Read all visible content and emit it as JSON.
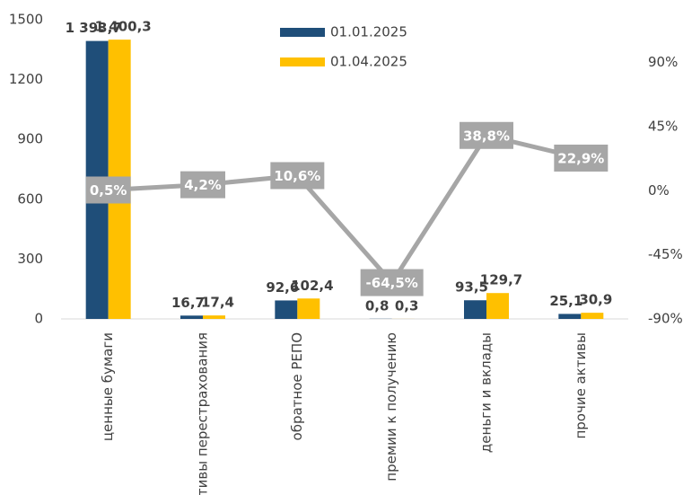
{
  "chart_data": {
    "type": "bar",
    "categories": [
      "ценные бумаги",
      "активы перестрахования",
      "обратное РЕПО",
      "премии к получению",
      "деньги и вклады",
      "прочие активы"
    ],
    "series": [
      {
        "name": "01.01.2025",
        "color": "#1f4e79",
        "values": [
          1393.7,
          16.7,
          92.6,
          0.8,
          93.5,
          25.1
        ],
        "value_labels": [
          "1 393,7",
          "16,7",
          "92,6",
          "0,8",
          "93,5",
          "25,1"
        ]
      },
      {
        "name": "01.04.2025",
        "color": "#ffc000",
        "values": [
          1400.3,
          17.4,
          102.4,
          0.3,
          129.7,
          30.9
        ],
        "value_labels": [
          "1 400,3",
          "17,4",
          "102,4",
          "0,3",
          "129,7",
          "30,9"
        ]
      },
      {
        "type": "line",
        "axis": "y2",
        "color": "#a6a6a6",
        "values": [
          0.5,
          4.2,
          10.6,
          -64.5,
          38.8,
          22.9
        ],
        "value_labels": [
          "0,5%",
          "4,2%",
          "10,6%",
          "-64,5%",
          "38,8%",
          "22,9%"
        ]
      }
    ],
    "ylim": [
      0,
      1500
    ],
    "yticks": [
      0,
      300,
      600,
      900,
      1200,
      1500
    ],
    "y2lim": [
      -90,
      120
    ],
    "y2ticks": [
      {
        "value": -90,
        "label": "-90%"
      },
      {
        "value": -45,
        "label": "-45%"
      },
      {
        "value": 0,
        "label": "0%"
      },
      {
        "value": 45,
        "label": "45%"
      },
      {
        "value": 90,
        "label": "90%"
      }
    ],
    "grid": false,
    "legend": "top"
  }
}
